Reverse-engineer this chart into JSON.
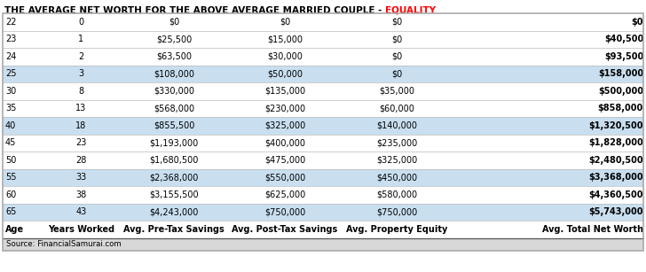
{
  "title_black": "THE AVERAGE NET WORTH FOR THE ABOVE AVERAGE MARRIED COUPLE - ",
  "title_red": "EQUALITY",
  "columns": [
    "Age",
    "Years Worked",
    "Avg. Pre-Tax Savings",
    "Avg. Post-Tax Savings",
    "Avg. Property Equity",
    "Avg. Total Net Worth"
  ],
  "rows": [
    [
      "22",
      "0",
      "$0",
      "$0",
      "$0",
      "$0"
    ],
    [
      "23",
      "1",
      "$25,500",
      "$15,000",
      "$0",
      "$40,500"
    ],
    [
      "24",
      "2",
      "$63,500",
      "$30,000",
      "$0",
      "$93,500"
    ],
    [
      "25",
      "3",
      "$108,000",
      "$50,000",
      "$0",
      "$158,000"
    ],
    [
      "30",
      "8",
      "$330,000",
      "$135,000",
      "$35,000",
      "$500,000"
    ],
    [
      "35",
      "13",
      "$568,000",
      "$230,000",
      "$60,000",
      "$858,000"
    ],
    [
      "40",
      "18",
      "$855,500",
      "$325,000",
      "$140,000",
      "$1,320,500"
    ],
    [
      "45",
      "23",
      "$1,193,000",
      "$400,000",
      "$235,000",
      "$1,828,000"
    ],
    [
      "50",
      "28",
      "$1,680,500",
      "$475,000",
      "$325,000",
      "$2,480,500"
    ],
    [
      "55",
      "33",
      "$2,368,000",
      "$550,000",
      "$450,000",
      "$3,368,000"
    ],
    [
      "60",
      "38",
      "$3,155,500",
      "$625,000",
      "$580,000",
      "$4,360,500"
    ],
    [
      "65",
      "43",
      "$4,243,000",
      "$750,000",
      "$750,000",
      "$5,743,000"
    ]
  ],
  "highlighted_rows": [
    3,
    6,
    9,
    11
  ],
  "highlight_color": "#c9dff0",
  "normal_color": "#ffffff",
  "source": "Source: FinancialSamurai.com",
  "title_fontsize": 7.5,
  "header_fontsize": 7.0,
  "cell_fontsize": 7.0,
  "col_aligns": [
    "left",
    "center",
    "center",
    "center",
    "center",
    "right"
  ],
  "outer_border_color": "#aaaaaa",
  "divider_color": "#bbbbbb",
  "header_divider_color": "#555555",
  "source_bg": "#d8d8d8"
}
